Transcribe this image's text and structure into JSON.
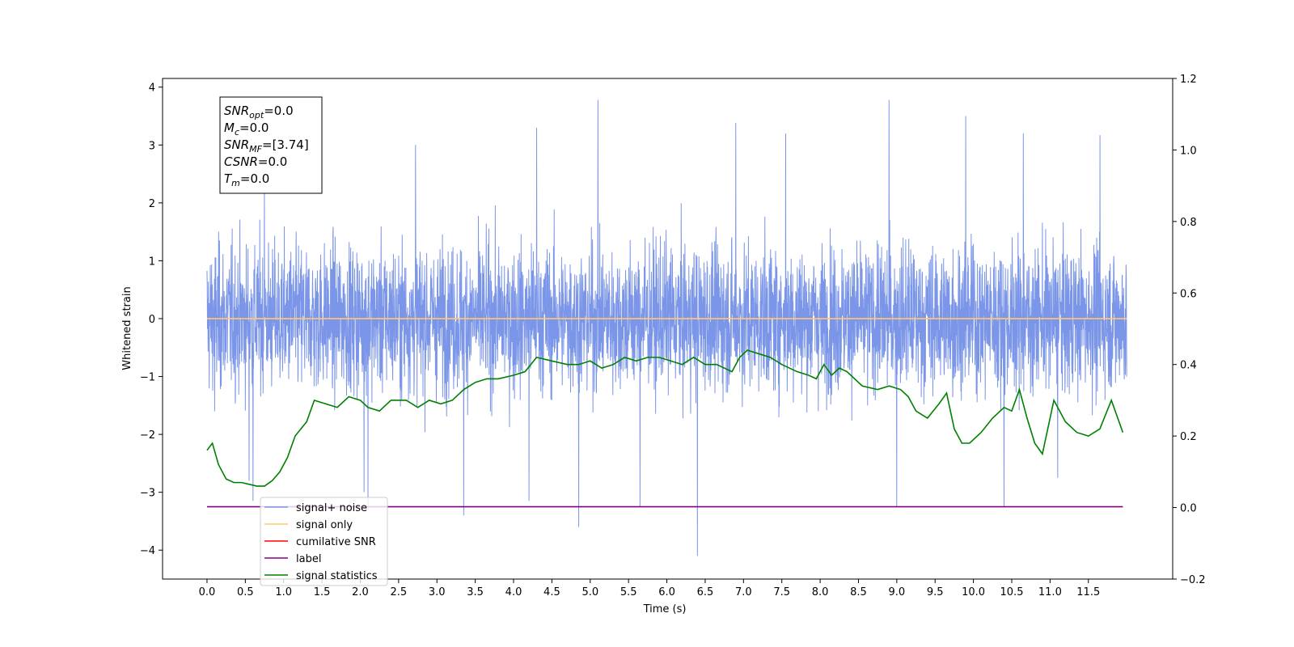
{
  "chart_data": {
    "type": "line",
    "xlabel": "Time (s)",
    "ylabel_left": "Whitened strain",
    "xlim": [
      -0.58,
      12.6
    ],
    "ylim_left": [
      -4.5,
      4.15
    ],
    "ylim_right": [
      -0.2,
      1.2
    ],
    "x_ticks": [
      0.0,
      0.5,
      1.0,
      1.5,
      2.0,
      2.5,
      3.0,
      3.5,
      4.0,
      4.5,
      5.0,
      5.5,
      6.0,
      6.5,
      7.0,
      7.5,
      8.0,
      8.5,
      9.0,
      9.5,
      10.0,
      10.5,
      11.0,
      11.5
    ],
    "x_tick_labels": [
      "0.0",
      "0.5",
      "1.0",
      "1.5",
      "2.0",
      "2.5",
      "3.0",
      "3.5",
      "4.0",
      "4.5",
      "5.0",
      "5.5",
      "6.0",
      "6.5",
      "7.0",
      "7.5",
      "8.0",
      "8.5",
      "9.0",
      "9.5",
      "10.0",
      "10.5",
      "11.0",
      "11.5"
    ],
    "y_ticks_left": [
      -4,
      -3,
      -2,
      -1,
      0,
      1,
      2,
      3,
      4
    ],
    "y_tick_labels_left": [
      "−4",
      "−3",
      "−2",
      "−1",
      "0",
      "1",
      "2",
      "3",
      "4"
    ],
    "y_ticks_right": [
      -0.2,
      0.0,
      0.2,
      0.4,
      0.6,
      0.8,
      1.0,
      1.2
    ],
    "y_tick_labels_right": [
      "−0.2",
      "0.0",
      "0.2",
      "0.4",
      "0.6",
      "0.8",
      "1.0",
      "1.2"
    ],
    "grid": false,
    "legend_position": "lower-left",
    "legend": [
      {
        "label": "signal+ noise",
        "color": "#7b96e8"
      },
      {
        "label": "signal only",
        "color": "#ffc86e"
      },
      {
        "label": "cumilative SNR",
        "color": "#ff0000"
      },
      {
        "label": "label",
        "color": "#800080"
      },
      {
        "label": "signal statistics",
        "color": "#008000"
      }
    ],
    "series": [
      {
        "name": "signal+ noise",
        "axis": "left",
        "color": "#7b96e8",
        "x_start": 0.0,
        "x_end": 12.0,
        "envelope_typical": [
          -1.9,
          2.1
        ],
        "spikes": [
          {
            "x": 0.1,
            "y": -1.6
          },
          {
            "x": 0.55,
            "y": -2.8
          },
          {
            "x": 0.6,
            "y": -3.15
          },
          {
            "x": 0.75,
            "y": 2.3
          },
          {
            "x": 2.05,
            "y": -3.0
          },
          {
            "x": 2.1,
            "y": -3.3
          },
          {
            "x": 2.72,
            "y": 3.0
          },
          {
            "x": 3.35,
            "y": -3.4
          },
          {
            "x": 4.2,
            "y": -3.15
          },
          {
            "x": 4.3,
            "y": 3.3
          },
          {
            "x": 4.85,
            "y": -3.6
          },
          {
            "x": 5.1,
            "y": 3.78
          },
          {
            "x": 5.65,
            "y": -3.25
          },
          {
            "x": 6.4,
            "y": -4.1
          },
          {
            "x": 6.9,
            "y": 3.38
          },
          {
            "x": 7.55,
            "y": 3.2
          },
          {
            "x": 8.9,
            "y": 3.78
          },
          {
            "x": 9.0,
            "y": -3.25
          },
          {
            "x": 9.9,
            "y": 3.5
          },
          {
            "x": 10.4,
            "y": -3.25
          },
          {
            "x": 10.65,
            "y": 3.2
          },
          {
            "x": 11.1,
            "y": -2.75
          },
          {
            "x": 11.65,
            "y": 3.17
          }
        ]
      },
      {
        "name": "signal only",
        "axis": "left",
        "color": "#ffc86e",
        "x": [
          0.0,
          12.0
        ],
        "y": [
          0.0,
          0.0
        ]
      },
      {
        "name": "label",
        "axis": "left",
        "color": "#800080",
        "x": [
          0.0,
          11.95
        ],
        "y": [
          -3.25,
          -3.25
        ]
      },
      {
        "name": "signal statistics",
        "axis": "right",
        "color": "#008000",
        "x": [
          0.0,
          0.07,
          0.15,
          0.25,
          0.35,
          0.45,
          0.55,
          0.65,
          0.75,
          0.85,
          0.95,
          1.05,
          1.15,
          1.3,
          1.4,
          1.55,
          1.7,
          1.85,
          2.0,
          2.1,
          2.25,
          2.4,
          2.6,
          2.75,
          2.9,
          3.05,
          3.2,
          3.35,
          3.5,
          3.65,
          3.8,
          4.0,
          4.15,
          4.3,
          4.5,
          4.7,
          4.85,
          5.0,
          5.15,
          5.3,
          5.45,
          5.6,
          5.75,
          5.9,
          6.05,
          6.2,
          6.35,
          6.5,
          6.65,
          6.85,
          6.95,
          7.05,
          7.2,
          7.35,
          7.5,
          7.7,
          7.85,
          7.95,
          8.05,
          8.15,
          8.25,
          8.35,
          8.55,
          8.75,
          8.9,
          9.05,
          9.15,
          9.25,
          9.4,
          9.55,
          9.65,
          9.75,
          9.85,
          9.95,
          10.1,
          10.25,
          10.4,
          10.5,
          10.6,
          10.7,
          10.8,
          10.9,
          11.05,
          11.2,
          11.35,
          11.5,
          11.65,
          11.8,
          11.95
        ],
        "y": [
          0.16,
          0.18,
          0.12,
          0.08,
          0.07,
          0.07,
          0.065,
          0.06,
          0.06,
          0.075,
          0.1,
          0.14,
          0.2,
          0.24,
          0.3,
          0.29,
          0.28,
          0.31,
          0.3,
          0.28,
          0.27,
          0.3,
          0.3,
          0.28,
          0.3,
          0.29,
          0.3,
          0.33,
          0.35,
          0.36,
          0.36,
          0.37,
          0.38,
          0.42,
          0.41,
          0.4,
          0.4,
          0.41,
          0.39,
          0.4,
          0.42,
          0.41,
          0.42,
          0.42,
          0.41,
          0.4,
          0.42,
          0.4,
          0.4,
          0.38,
          0.42,
          0.44,
          0.43,
          0.42,
          0.4,
          0.38,
          0.37,
          0.36,
          0.4,
          0.37,
          0.39,
          0.38,
          0.34,
          0.33,
          0.34,
          0.33,
          0.31,
          0.27,
          0.25,
          0.29,
          0.32,
          0.22,
          0.18,
          0.18,
          0.21,
          0.25,
          0.28,
          0.27,
          0.33,
          0.25,
          0.18,
          0.15,
          0.3,
          0.24,
          0.21,
          0.2,
          0.22,
          0.3,
          0.21
        ]
      }
    ]
  },
  "info_box": [
    {
      "main": "SNR",
      "sub": "opt",
      "rest": "=0.0"
    },
    {
      "main": "M",
      "sub": "c",
      "rest": "=0.0"
    },
    {
      "main": "SNR",
      "sub": "MF",
      "rest": "=[3.74]"
    },
    {
      "main": "CSNR",
      "sub": "",
      "rest": "=0.0"
    },
    {
      "main": "T",
      "sub": "m",
      "rest": "=0.0"
    }
  ]
}
